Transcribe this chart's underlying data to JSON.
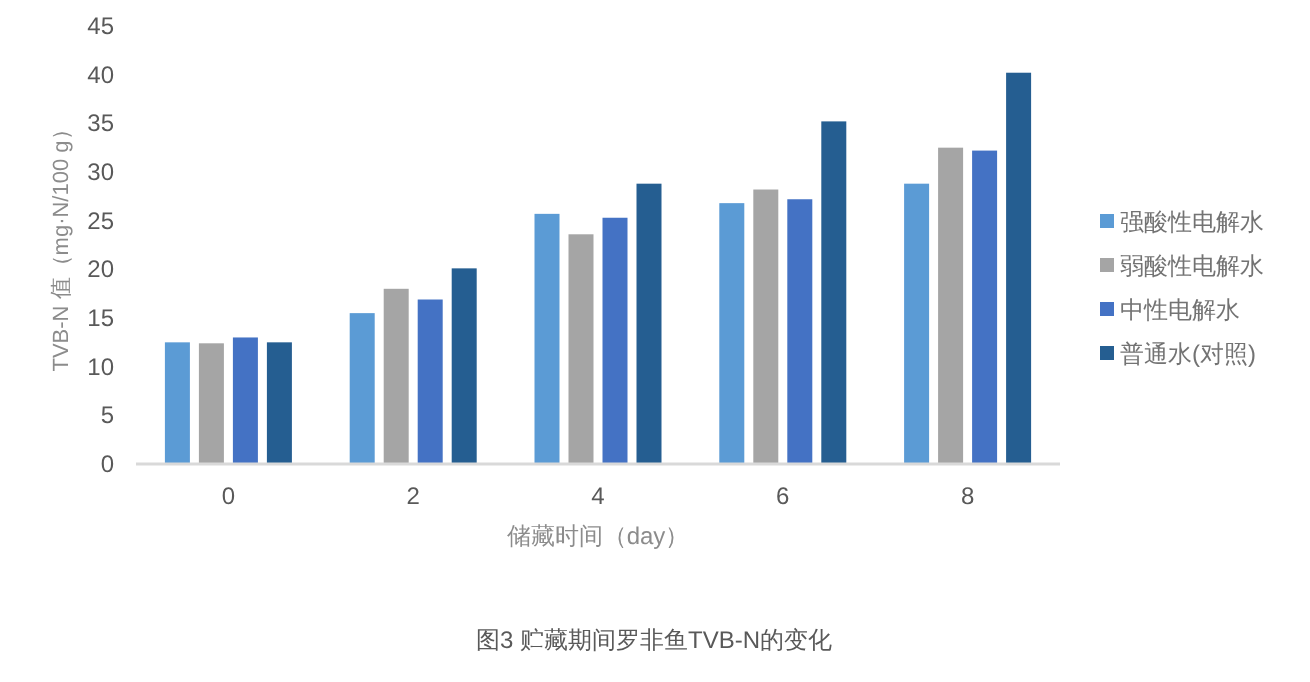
{
  "chart_data": {
    "type": "bar",
    "title": "图3  贮藏期间罗非鱼TVB-N的变化",
    "xlabel": "储藏时间（day）",
    "ylabel": "TVB-N 值（mg·N/100 g）",
    "categories": [
      "0",
      "2",
      "4",
      "6",
      "8"
    ],
    "series": [
      {
        "name": "强酸性电解水",
        "color": "#5b9bd5",
        "values": [
          12.5,
          15.5,
          25.7,
          26.8,
          28.8
        ]
      },
      {
        "name": "弱酸性电解水",
        "color": "#a5a5a5",
        "values": [
          12.4,
          18,
          23.6,
          28.2,
          32.5
        ]
      },
      {
        "name": "中性电解水",
        "color": "#4472c4",
        "values": [
          13,
          16.9,
          25.3,
          27.2,
          32.2
        ]
      },
      {
        "name": "普通水(对照)",
        "color": "#255e91",
        "values": [
          12.5,
          20.1,
          28.8,
          35.2,
          40.2
        ]
      }
    ],
    "ylim": [
      0,
      45
    ],
    "yticks": [
      0,
      5,
      10,
      15,
      20,
      25,
      30,
      35,
      40,
      45
    ],
    "grid": false,
    "legend": "right"
  }
}
